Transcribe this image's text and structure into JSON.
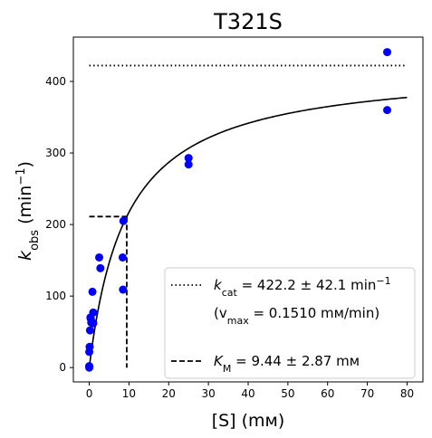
{
  "chart_data": {
    "type": "scatter",
    "title": "T321S",
    "xlabel": "[S] (mм)",
    "ylabel_base": "k",
    "ylabel_sub": "obs",
    "ylabel_rest": " (min",
    "ylabel_sup": "−1",
    "ylabel_close": ")",
    "xlim": [
      -4,
      84
    ],
    "ylim": [
      -20,
      462
    ],
    "xticks": [
      0,
      10,
      20,
      30,
      40,
      50,
      60,
      70,
      80
    ],
    "yticks": [
      0,
      100,
      200,
      300,
      400
    ],
    "grid": false,
    "legend_position": "lower-right",
    "colors": {
      "points": "#0000ff",
      "lines": "#000000"
    },
    "points": {
      "x": [
        0,
        0,
        0,
        0.1,
        0.2,
        0.3,
        0.4,
        0.5,
        0.8,
        1,
        1,
        2.5,
        2.8,
        8.4,
        8.5,
        8.6,
        25,
        25,
        75,
        75
      ],
      "y": [
        0,
        2,
        22,
        29,
        52,
        70,
        68,
        63,
        106,
        77,
        62,
        154,
        139,
        154,
        109,
        205,
        284,
        293,
        441,
        360
      ]
    },
    "fit_curve": {
      "vmax": 422.2,
      "km": 9.44,
      "x_range": [
        0,
        80
      ]
    },
    "kcat_line": {
      "y": 422.2,
      "x_range": [
        0,
        80
      ]
    },
    "km_line": {
      "x": 9.44,
      "y": 211.1
    },
    "legend": {
      "kcat": {
        "sym": "k",
        "sub": "cat",
        "text": " = 422.2 ± 42.1 min",
        "sup": "−1"
      },
      "vmax": {
        "open": "(v",
        "sub": "max",
        "text": " = 0.1510 mм/min)"
      },
      "km": {
        "sym": "K",
        "sub": "M",
        "text": " = 9.44 ± 2.87 mм"
      }
    }
  }
}
